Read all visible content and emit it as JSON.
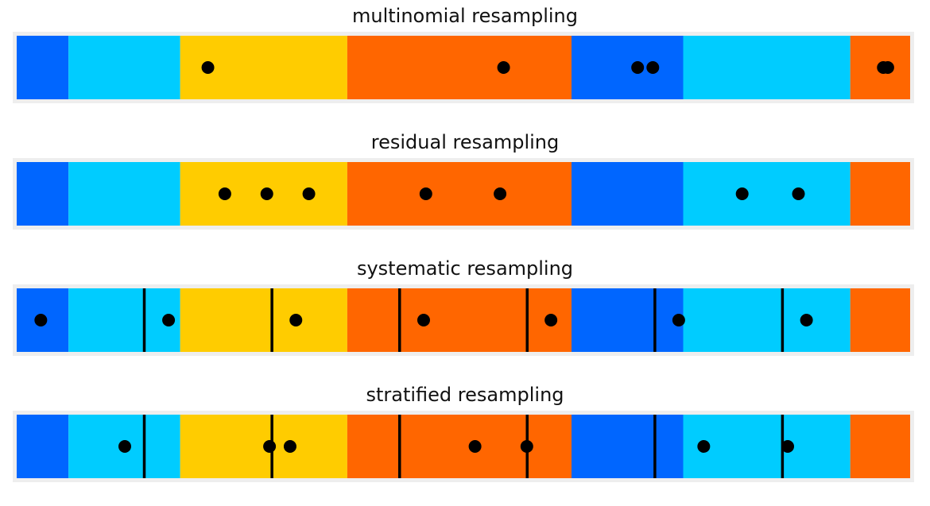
{
  "palette": [
    "#0066ff",
    "#00ccff",
    "#ffcc00",
    "#ff6600",
    "#0066ff",
    "#00ccff",
    "#ff6600"
  ],
  "chart_data": [
    {
      "type": "scatter",
      "title": "multinomial resampling",
      "xlim": [
        0,
        1
      ],
      "weights": [
        0.058,
        0.125,
        0.187,
        0.251,
        0.125,
        0.187,
        0.061
      ],
      "strata_lines": [],
      "points": [
        0.214,
        0.545,
        0.695,
        0.712,
        0.97,
        0.975
      ]
    },
    {
      "type": "scatter",
      "title": "residual resampling",
      "xlim": [
        0,
        1
      ],
      "weights": [
        0.058,
        0.125,
        0.187,
        0.251,
        0.125,
        0.187,
        0.061
      ],
      "strata_lines": [],
      "points": [
        0.233,
        0.28,
        0.327,
        0.458,
        0.541,
        0.812,
        0.875
      ]
    },
    {
      "type": "scatter",
      "title": "systematic resampling",
      "xlim": [
        0,
        1
      ],
      "weights": [
        0.058,
        0.125,
        0.187,
        0.251,
        0.125,
        0.187,
        0.061
      ],
      "strata_lines": [
        0.1428,
        0.2857,
        0.4286,
        0.5714,
        0.7143,
        0.8571
      ],
      "points": [
        0.027,
        0.17,
        0.3125,
        0.4555,
        0.598,
        0.741,
        0.884
      ]
    },
    {
      "type": "scatter",
      "title": "stratified resampling",
      "xlim": [
        0,
        1
      ],
      "weights": [
        0.058,
        0.125,
        0.187,
        0.251,
        0.125,
        0.187,
        0.061
      ],
      "strata_lines": [
        0.1428,
        0.2857,
        0.4286,
        0.5714,
        0.7143,
        0.8571
      ],
      "points": [
        0.121,
        0.283,
        0.306,
        0.513,
        0.571,
        0.769,
        0.863
      ]
    }
  ]
}
